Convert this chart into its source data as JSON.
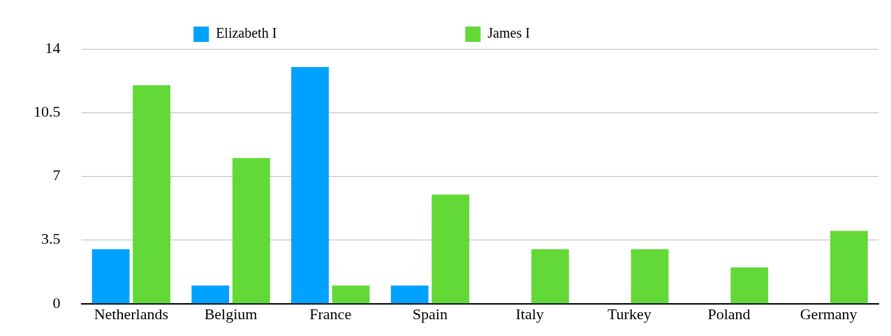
{
  "chart_data": {
    "type": "bar",
    "categories": [
      "Netherlands",
      "Belgium",
      "France",
      "Spain",
      "Italy",
      "Turkey",
      "Poland",
      "Germany"
    ],
    "series": [
      {
        "name": "Elizabeth I",
        "color": "#00a2ff",
        "values": [
          3,
          1,
          13,
          1,
          0,
          0,
          0,
          0
        ]
      },
      {
        "name": "James I",
        "color": "#62d937",
        "values": [
          12,
          8,
          1,
          6,
          3,
          3,
          2,
          4
        ]
      }
    ],
    "ylim": [
      0,
      14
    ],
    "yticks": [
      0,
      3.5,
      7,
      10.5,
      14
    ],
    "grid": "y",
    "legend": "top"
  }
}
